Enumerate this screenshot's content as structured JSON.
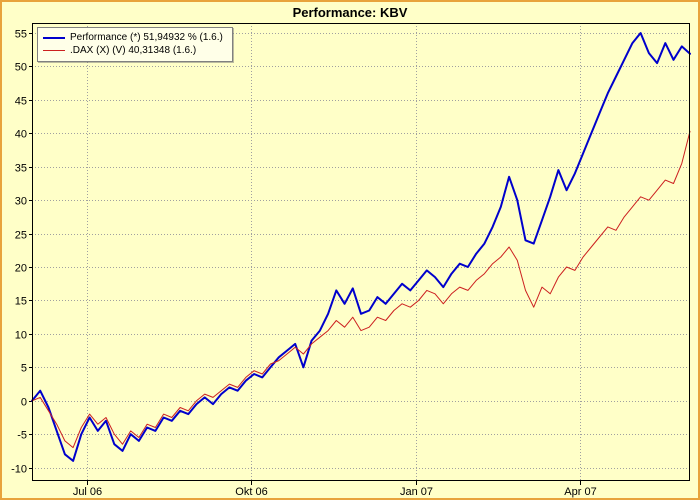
{
  "window": {
    "title": "Performance: KBV"
  },
  "legend": {
    "position": "top-left",
    "items": [
      {
        "id": "performance",
        "label": "Performance (*) 51,94932 % (1.6.)",
        "color": "#0000cc",
        "line_width": 2
      },
      {
        "id": "dax",
        "label": ".DAX (X) (V) 40,31348 (1.6.)",
        "color": "#cc2020",
        "line_width": 1
      }
    ]
  },
  "colors": {
    "background": "#ffffc8",
    "frame_border": "#e8a33c",
    "plot_background": "#ffffc8",
    "plot_border": "#000000",
    "grid": "#a0a0a0",
    "axis_text": "#000000",
    "legend_background": "#ffffe8",
    "legend_border": "#808080"
  },
  "chart_data": {
    "type": "line",
    "title": "Performance: KBV",
    "xlabel": "",
    "ylabel": "",
    "grid": "dotted",
    "legend_position": "top-left",
    "x_tick_labels": [
      "Jul 06",
      "Okt 06",
      "Jan 07",
      "Apr 07"
    ],
    "x_tick_month_positions": [
      1,
      4,
      7,
      10
    ],
    "x_total_months": 12,
    "yticks": [
      -10,
      -5,
      0,
      5,
      10,
      15,
      20,
      25,
      30,
      35,
      40,
      45,
      50,
      55
    ],
    "ylim": [
      -12,
      56.5
    ],
    "series": [
      {
        "id": "performance",
        "name": "Performance (*)",
        "final_value_label": "51,94932 % (1.6.)",
        "color": "#0000cc",
        "width": 2,
        "values": [
          0,
          1.5,
          -1,
          -4.5,
          -8,
          -9,
          -5,
          -2.5,
          -4.5,
          -3,
          -6.5,
          -7.5,
          -5,
          -6,
          -4,
          -4.5,
          -2.5,
          -3,
          -1.5,
          -2,
          -0.5,
          0.5,
          -0.5,
          1,
          2,
          1.5,
          3,
          4,
          3.5,
          5,
          6.5,
          7.5,
          8.5,
          5,
          9,
          10.5,
          13,
          16.5,
          14.5,
          16.8,
          13,
          13.5,
          15.5,
          14.5,
          16,
          17.5,
          16.5,
          18,
          19.5,
          18.5,
          17,
          19,
          20.5,
          20,
          22,
          23.5,
          26,
          29,
          33.5,
          30,
          24,
          23.5,
          27,
          30.5,
          34.5,
          31.5,
          34,
          37,
          40,
          43,
          46,
          48.5,
          51,
          53.5,
          55,
          52,
          50.5,
          53.5,
          51,
          53,
          51.9
        ]
      },
      {
        "id": "dax",
        "name": ".DAX (X) (V)",
        "final_value_label": "40,31348 (1.6.)",
        "color": "#cc2020",
        "width": 1,
        "values": [
          0,
          0.5,
          -1.5,
          -3.5,
          -6,
          -7,
          -4,
          -2,
          -3.5,
          -2.5,
          -5,
          -6.5,
          -4.5,
          -5.5,
          -3.5,
          -4,
          -2,
          -2.5,
          -1,
          -1.5,
          0,
          1,
          0.5,
          1.5,
          2.5,
          2,
          3.5,
          4.5,
          4,
          5.5,
          6,
          7,
          8,
          7,
          8.5,
          9.5,
          10.5,
          12,
          11,
          12.5,
          10.5,
          11,
          12.5,
          12,
          13.5,
          14.5,
          14,
          15,
          16.5,
          16,
          14.5,
          16,
          17,
          16.5,
          18,
          19,
          20.5,
          21.5,
          23,
          21,
          16.5,
          14,
          17,
          16,
          18.5,
          20,
          19.5,
          21.5,
          23,
          24.5,
          26,
          25.5,
          27.5,
          29,
          30.5,
          30,
          31.5,
          33,
          32.5,
          35.5,
          40.3
        ]
      }
    ]
  }
}
